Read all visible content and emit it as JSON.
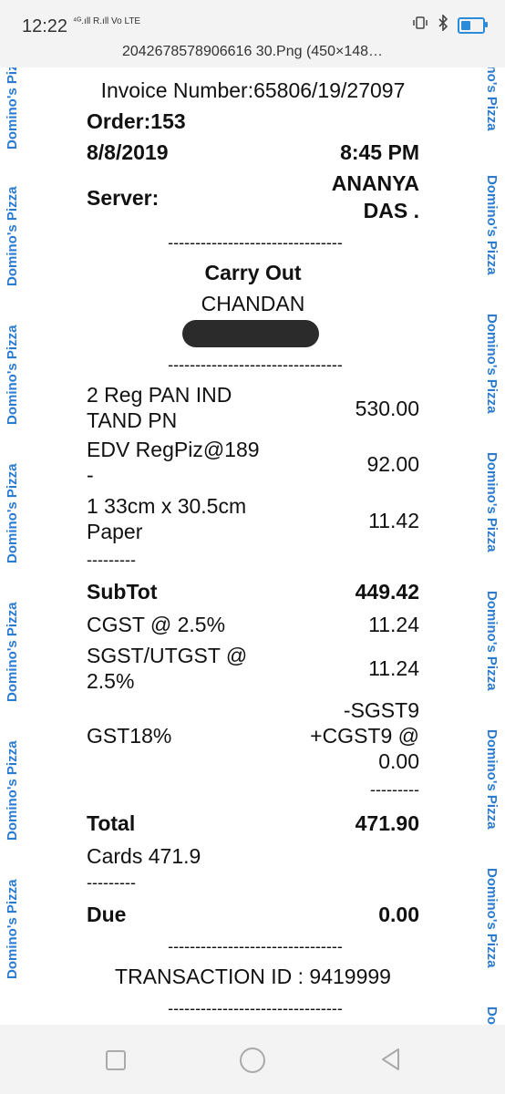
{
  "status_bar": {
    "time": "12:22",
    "network": "⁴ᴳ.ıll R.ıll Vo LTE",
    "icons": [
      "vibrate-icon",
      "bluetooth-icon",
      "battery-icon"
    ],
    "title": "2042678578906616 30.Png (450×148…"
  },
  "receipt": {
    "side_text": "Domino's Pizza",
    "invoice": "Invoice Number:65806/19/27097",
    "order": "Order:153",
    "date": "8/8/2019",
    "time": "8:45 PM",
    "server_label": "Server:",
    "server_name_line1": "ANANYA",
    "server_name_line2": "DAS .",
    "divider": "--------------------------------",
    "mode": "Carry Out",
    "customer": "CHANDAN",
    "items": [
      {
        "line1": "2 Reg PAN IND",
        "line2": "TAND PN",
        "price": "530.00"
      },
      {
        "line1": "EDV RegPiz@189",
        "line2": "-",
        "price": "92.00"
      },
      {
        "line1": "1 33cm x 30.5cm",
        "line2": "Paper",
        "price": "11.42"
      }
    ],
    "short_divider": "---------",
    "subtotal_label": "SubTot",
    "subtotal_value": "449.42",
    "cgst_label": "CGST @ 2.5%",
    "cgst_value": "11.24",
    "sgst_label_line1": "SGST/UTGST @",
    "sgst_label_line2": "2.5%",
    "sgst_value": "11.24",
    "gst_label": "GST18%",
    "gst_value_line1": "-SGST9",
    "gst_value_line2": "+CGST9 @",
    "gst_value_line3": "0.00",
    "gst_divider": "---------",
    "total_label": "Total",
    "total_value": "471.90",
    "cards_label": "Cards 471.9",
    "due_label": "Due",
    "due_value": "0.00",
    "transaction": "TRANSACTION ID : 9419999"
  },
  "nav": {
    "buttons": [
      "recent-apps-button",
      "home-button",
      "back-button"
    ]
  }
}
